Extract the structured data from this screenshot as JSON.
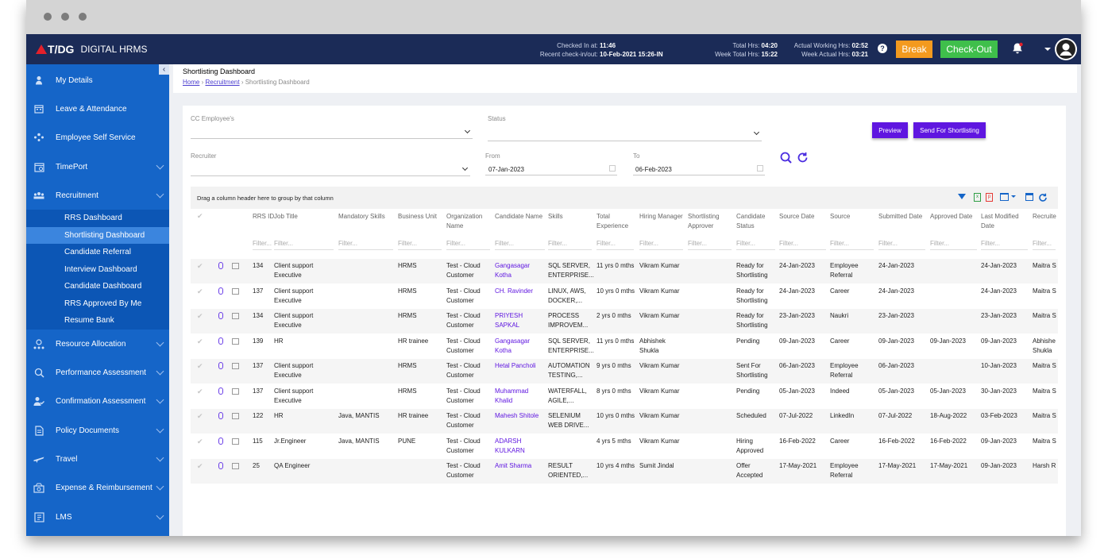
{
  "app": {
    "logo_text": "T/DG",
    "logo_sub": "DIGITAL HRMS"
  },
  "topbar": {
    "checked_in_label": "Checked In at:",
    "checked_in_value": "11:46",
    "recent_label": "Recent check-in/out:",
    "recent_value": "10-Feb-2021 15:26-IN",
    "total_hrs_label": "Total Hrs:",
    "total_hrs_value": "04:20",
    "week_total_label": "Week Total Hrs:",
    "week_total_value": "15:22",
    "actual_label": "Actual Working Hrs:",
    "actual_value": "02:52",
    "week_actual_label": "Week Actual Hrs:",
    "week_actual_value": "03:21",
    "break_label": "Break",
    "checkout_label": "Check-Out",
    "colors": {
      "bar": "#1b2b57",
      "break": "#f39a1f",
      "checkout": "#3fbf4b"
    }
  },
  "sidebar": {
    "items": [
      {
        "label": "My Details",
        "icon": "person-icon"
      },
      {
        "label": "Leave & Attendance",
        "icon": "calendar-icon"
      },
      {
        "label": "Employee Self Service",
        "icon": "people-icon"
      },
      {
        "label": "TimePort",
        "icon": "calendar-clock-icon"
      },
      {
        "label": "Recruitment",
        "icon": "group-icon"
      }
    ],
    "recruitment_sub": [
      {
        "label": "RRS Dashboard"
      },
      {
        "label": "Shortlisting Dashboard"
      },
      {
        "label": "Candidate Referral"
      },
      {
        "label": "Interview Dashboard"
      },
      {
        "label": "Candidate Dashboard"
      },
      {
        "label": "RRS Approved By Me"
      },
      {
        "label": "Resume Bank"
      }
    ],
    "lower_items": [
      {
        "label": "Resource Allocation",
        "icon": "network-icon"
      },
      {
        "label": "Performance Assessment",
        "icon": "search-chart-icon"
      },
      {
        "label": "Confirmation Assessment",
        "icon": "user-check-icon"
      },
      {
        "label": "Policy Documents",
        "icon": "document-icon"
      },
      {
        "label": "Travel",
        "icon": "plane-icon"
      },
      {
        "label": "Expense & Reimbursement",
        "icon": "money-icon"
      },
      {
        "label": "LMS",
        "icon": "lms-icon"
      }
    ],
    "color": "#1565c8"
  },
  "page": {
    "title": "Shortlisting Dashboard",
    "breadcrumb": [
      "Home",
      "Recruitment",
      "Shortlisting Dashboard"
    ]
  },
  "filters": {
    "cc_employee_label": "CC Employee's",
    "status_label": "Status",
    "recruiter_label": "Recruiter",
    "from_label": "From",
    "from_value": "07-Jan-2023",
    "to_label": "To",
    "to_value": "06-Feb-2023",
    "preview_label": "Preview",
    "send_label": "Send For Shortlisting"
  },
  "grid": {
    "group_hint": "Drag a column header here to group by that column",
    "filter_placeholder": "Filter...",
    "headers": {
      "rrs_id": "RRS ID",
      "job_title": "Job Title",
      "mandatory_skills": "Mandatory Skills",
      "business_unit": "Business Unit",
      "organization": "Organization Name",
      "candidate": "Candidate Name",
      "skills": "Skills",
      "experience": "Total Experience",
      "hiring_manager": "Hiring Manager",
      "approver": "Shortlisting Approver",
      "status": "Candidate Status",
      "source_date": "Source Date",
      "source": "Source",
      "submitted": "Submitted Date",
      "approved": "Approved Date",
      "modified": "Last Modified Date",
      "recruiter": "Recruite"
    },
    "rows": [
      {
        "rrs_id": "134",
        "job_title": "Client support Executive",
        "mandatory_skills": "",
        "business_unit": "HRMS",
        "organization": "Test - Cloud Customer",
        "candidate": "Gangasagar Kotha",
        "skills": "SQL SERVER, ENTERPRISE...",
        "experience": "11 yrs 0 mths",
        "hiring_manager": "Vikram Kumar",
        "approver": "",
        "status": "Ready for Shortlisting",
        "source_date": "24-Jan-2023",
        "source": "Employee Referral",
        "submitted": "24-Jan-2023",
        "approved": "",
        "modified": "24-Jan-2023",
        "recruiter": "Maitra S"
      },
      {
        "rrs_id": "137",
        "job_title": "Client support Executive",
        "mandatory_skills": "",
        "business_unit": "HRMS",
        "organization": "Test - Cloud Customer",
        "candidate": "CH. Ravinder",
        "skills": "LINUX, AWS, DOCKER,...",
        "experience": "10 yrs 0 mths",
        "hiring_manager": "Vikram Kumar",
        "approver": "",
        "status": "Ready for Shortlisting",
        "source_date": "24-Jan-2023",
        "source": "Career",
        "submitted": "24-Jan-2023",
        "approved": "",
        "modified": "24-Jan-2023",
        "recruiter": "Maitra S"
      },
      {
        "rrs_id": "134",
        "job_title": "Client support Executive",
        "mandatory_skills": "",
        "business_unit": "HRMS",
        "organization": "Test - Cloud Customer",
        "candidate": "PRIYESH SAPKAL",
        "skills": "PROCESS IMPROVEM...",
        "experience": "2 yrs 0 mths",
        "hiring_manager": "Vikram Kumar",
        "approver": "",
        "status": "Ready for Shortlisting",
        "source_date": "23-Jan-2023",
        "source": "Naukri",
        "submitted": "23-Jan-2023",
        "approved": "",
        "modified": "23-Jan-2023",
        "recruiter": "Maitra S"
      },
      {
        "rrs_id": "139",
        "job_title": "HR",
        "mandatory_skills": "",
        "business_unit": "HR trainee",
        "organization": "Test - Cloud Customer",
        "candidate": "Gangasagar Kotha",
        "skills": "SQL SERVER, ENTERPRISE...",
        "experience": "11 yrs 0 mths",
        "hiring_manager": "Abhishek Shukla",
        "approver": "",
        "status": "Pending",
        "source_date": "09-Jan-2023",
        "source": "Career",
        "submitted": "09-Jan-2023",
        "approved": "09-Jan-2023",
        "modified": "09-Jan-2023",
        "recruiter": "Abhishe Shukla"
      },
      {
        "rrs_id": "137",
        "job_title": "Client support Executive",
        "mandatory_skills": "",
        "business_unit": "HRMS",
        "organization": "Test - Cloud Customer",
        "candidate": "Hetal Pancholi",
        "skills": "AUTOMATION TESTING,...",
        "experience": "9 yrs 0 mths",
        "hiring_manager": "Vikram Kumar",
        "approver": "",
        "status": "Sent For Shortlisting",
        "source_date": "06-Jan-2023",
        "source": "Employee Referral",
        "submitted": "06-Jan-2023",
        "approved": "",
        "modified": "10-Jan-2023",
        "recruiter": "Maitra S"
      },
      {
        "rrs_id": "137",
        "job_title": "Client support Executive",
        "mandatory_skills": "",
        "business_unit": "HRMS",
        "organization": "Test - Cloud Customer",
        "candidate": "Muhammad Khalid",
        "skills": "WATERFALL, AGILE,...",
        "experience": "8 yrs 0 mths",
        "hiring_manager": "Vikram Kumar",
        "approver": "",
        "status": "Pending",
        "source_date": "05-Jan-2023",
        "source": "Indeed",
        "submitted": "05-Jan-2023",
        "approved": "05-Jan-2023",
        "modified": "30-Jan-2023",
        "recruiter": "Maitra S"
      },
      {
        "rrs_id": "122",
        "job_title": "HR",
        "mandatory_skills": "Java, MANTIS",
        "business_unit": "HR trainee",
        "organization": "Test - Cloud Customer",
        "candidate": "Mahesh Shitole",
        "skills": "SELENIUM WEB DRIVE...",
        "experience": "10 yrs 0 mths",
        "hiring_manager": "Vikram Kumar",
        "approver": "",
        "status": "Scheduled",
        "source_date": "07-Jul-2022",
        "source": "LinkedIn",
        "submitted": "07-Jul-2022",
        "approved": "18-Aug-2022",
        "modified": "03-Feb-2023",
        "recruiter": "Maitra S"
      },
      {
        "rrs_id": "115",
        "job_title": "Jr.Engineer",
        "mandatory_skills": "Java, MANTIS",
        "business_unit": "PUNE",
        "organization": "Test - Cloud Customer",
        "candidate": "ADARSH KULKARN",
        "skills": "",
        "experience": "4 yrs 5 mths",
        "hiring_manager": "Vikram Kumar",
        "approver": "",
        "status": "Hiring Approved",
        "source_date": "16-Feb-2022",
        "source": "Career",
        "submitted": "16-Feb-2022",
        "approved": "16-Feb-2022",
        "modified": "09-Jan-2023",
        "recruiter": "Maitra S"
      },
      {
        "rrs_id": "25",
        "job_title": "QA Engineer",
        "mandatory_skills": "",
        "business_unit": "",
        "organization": "Test - Cloud Customer",
        "candidate": "Amit Sharma",
        "skills": "RESULT ORIENTED,...",
        "experience": "10 yrs 4 mths",
        "hiring_manager": "Sumit Jindal",
        "approver": "",
        "status": "Offer Accepted",
        "source_date": "17-May-2021",
        "source": "Employee Referral",
        "submitted": "17-May-2021",
        "approved": "17-May-2021",
        "modified": "09-Jan-2023",
        "recruiter": "Harsh R"
      }
    ]
  }
}
